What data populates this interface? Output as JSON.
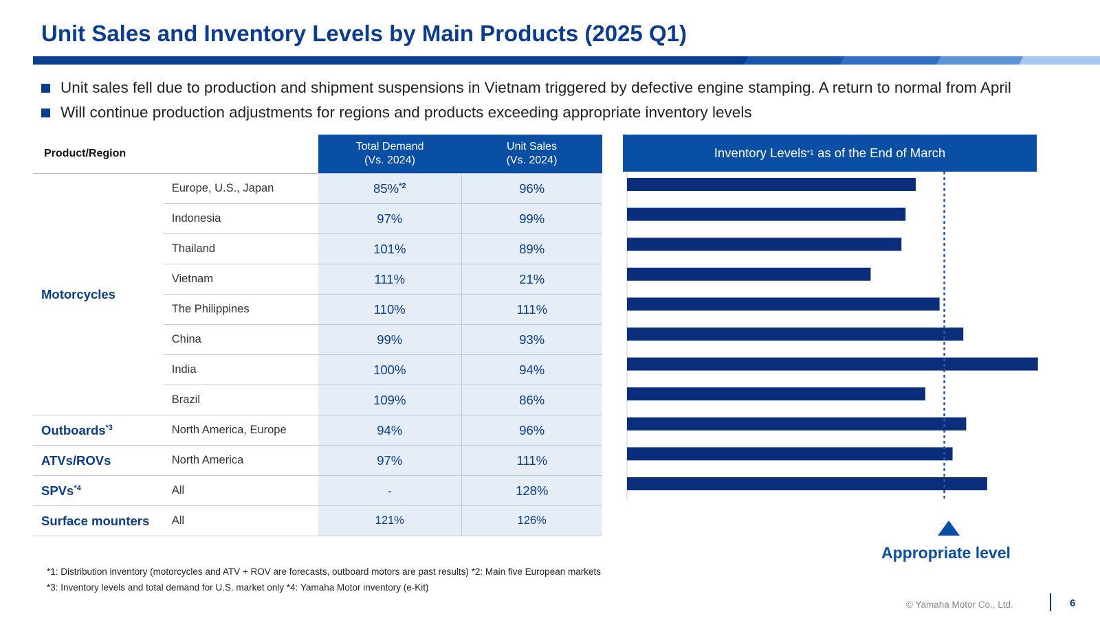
{
  "title": "Unit Sales and Inventory Levels by Main Products (2025 Q1)",
  "bullets": [
    "Unit sales fell due to production and shipment suspensions in Vietnam triggered by defective engine stamping. A return to normal from April",
    "Will continue production adjustments for regions and products exceeding appropriate inventory levels"
  ],
  "table": {
    "header_product": "Product/Region",
    "header_demand_line1": "Total Demand",
    "header_demand_line2": "(Vs. 2024)",
    "header_sales_line1": "Unit Sales",
    "header_sales_line2": "(Vs. 2024)",
    "categories": {
      "motorcycles": "Motorcycles",
      "outboards": "Outboards",
      "outboards_note": "*3",
      "atvs": "ATVs/ROVs",
      "spvs": "SPVs",
      "spvs_note": "*4",
      "surface": "Surface mounters"
    },
    "rows": [
      {
        "region": "Europe, U.S., Japan",
        "demand": "85%",
        "demand_note": "*2",
        "sales": "96%"
      },
      {
        "region": "Indonesia",
        "demand": "97%",
        "sales": "99%"
      },
      {
        "region": "Thailand",
        "demand": "101%",
        "sales": "89%"
      },
      {
        "region": "Vietnam",
        "demand": "111%",
        "sales": "21%"
      },
      {
        "region": "The Philippines",
        "demand": "110%",
        "sales": "111%"
      },
      {
        "region": "China",
        "demand": "99%",
        "sales": "93%"
      },
      {
        "region": "India",
        "demand": "100%",
        "sales": "94%"
      },
      {
        "region": "Brazil",
        "demand": "109%",
        "sales": "86%"
      },
      {
        "region": "North America, Europe",
        "demand": "94%",
        "sales": "96%"
      },
      {
        "region": "North America",
        "demand": "97%",
        "sales": "111%"
      },
      {
        "region": "All",
        "demand": "-",
        "sales": "128%"
      },
      {
        "region": "All",
        "demand": "121%",
        "sales": "126%"
      }
    ]
  },
  "chart_data": {
    "type": "bar",
    "orientation": "horizontal",
    "title": "Inventory Levels",
    "title_note": "*1",
    "title_suffix": "as of the End of March",
    "categories": [
      "Europe, U.S., Japan",
      "Indonesia",
      "Thailand",
      "Vietnam",
      "The Philippines",
      "China",
      "India",
      "Brazil",
      "Outboards",
      "ATVs/ROVs",
      "SPVs"
    ],
    "values": [
      0.91,
      0.878,
      0.865,
      0.768,
      0.985,
      1.06,
      1.295,
      0.94,
      1.069,
      1.026,
      1.135
    ],
    "reference_line": {
      "value": 1.0,
      "label": "Appropriate level"
    },
    "xlim": [
      0,
      1.3
    ],
    "bar_color": "#0a2e7c",
    "reference_color": "#1a5cc0",
    "axis_numbers_shown": false
  },
  "footnotes": [
    "*1: Distribution inventory (motorcycles and ATV + ROV are forecasts, outboard motors are past results) *2: Main five European markets",
    "*3: Inventory levels and total demand for U.S. market only  *4: Yamaha Motor inventory (e-Kit)"
  ],
  "footer": {
    "copyright": "© Yamaha Motor Co., Ltd.",
    "page_number": "6"
  },
  "colors": {
    "brand": "#0a3d91",
    "header_blue": "#0a4fa6",
    "cell_fill": "#e5edf6"
  }
}
